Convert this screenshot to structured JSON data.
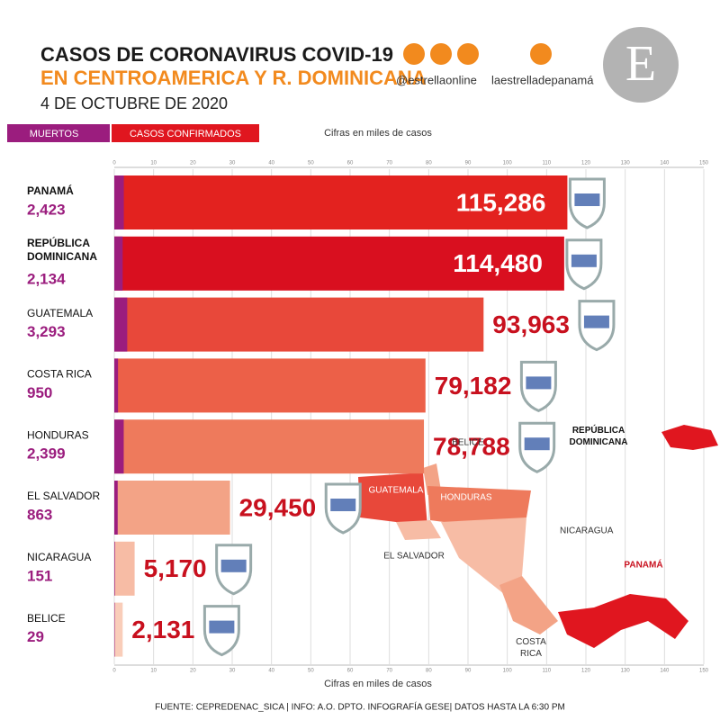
{
  "chart_data": {
    "type": "bar",
    "orientation": "horizontal",
    "title": "CASOS DE CORONAVIRUS COVID-19",
    "subtitle": "EN CENTROAMERICA Y R. DOMINICANA",
    "date": "4 DE OCTUBRE DE 2020",
    "axis_label": "Cifras en miles de casos",
    "social": [
      "@estrellaonline",
      "laestrelladepanamá"
    ],
    "logo": "E",
    "footer": "FUENTE: CEPREDENAC_SICA | INFO: A.O. DPTO. INFOGRAFÍA GESE| DATOS HASTA LA 6:30 PM",
    "categories": [
      "PANAMÁ",
      "REPÚBLICA DOMINICANA",
      "GUATEMALA",
      "COSTA RICA",
      "HONDURAS",
      "EL SALVADOR",
      "NICARAGUA",
      "BELICE"
    ],
    "series": [
      {
        "name": "MUERTOS",
        "color": "#9b1d7e",
        "values": [
          2.423,
          2.134,
          3.293,
          0.95,
          2.399,
          0.863,
          0.151,
          0.029
        ],
        "value_labels": [
          "2,423",
          "2,134",
          "3,293",
          "950",
          "2,399",
          "863",
          "151",
          "29"
        ]
      },
      {
        "name": "CASOS CONFIRMADOS",
        "color": "#e0161f",
        "colors": [
          "#e3221f",
          "#d90f1f",
          "#e8483a",
          "#ec6048",
          "#ee7a5c",
          "#f3a386",
          "#f7bca5",
          "#f9cdb9"
        ],
        "values": [
          115.286,
          114.48,
          93.963,
          79.182,
          78.788,
          29.45,
          5.17,
          2.131
        ],
        "value_labels": [
          "115,286",
          "114,480",
          "93,963",
          "79,182",
          "78,788",
          "29,450",
          "5,170",
          "2,131"
        ]
      }
    ],
    "xlim": [
      0,
      150
    ],
    "xticks": [
      0,
      10,
      20,
      30,
      40,
      50,
      60,
      70,
      80,
      90,
      100,
      110,
      120,
      130,
      140,
      150
    ],
    "grid": true,
    "map_labels": [
      "GUATEMALA",
      "HONDURAS",
      "BELICE",
      "EL SALVADOR",
      "NICARAGUA",
      "PANAMÁ",
      "COSTA RICA",
      "REPÚBLICA DOMINICANA"
    ]
  }
}
